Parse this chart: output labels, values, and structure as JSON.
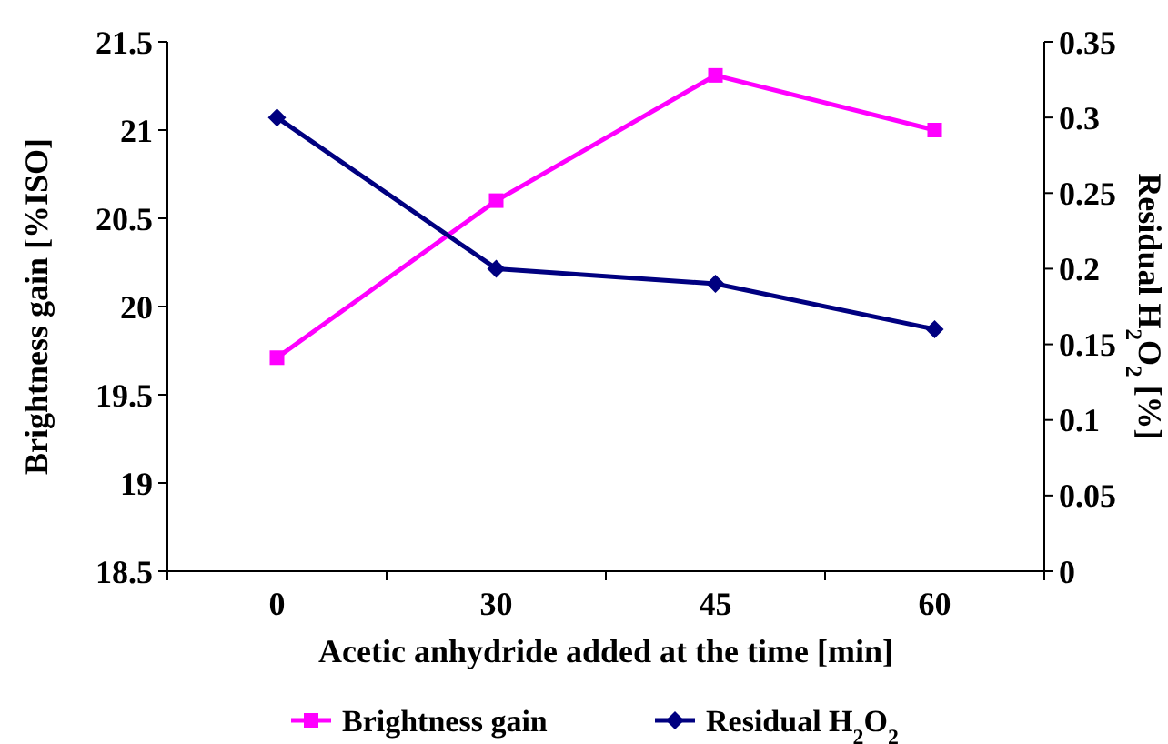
{
  "chart_data": {
    "type": "line",
    "xlabel": "Acetic anhydride added at the time [min]",
    "ylabel": "Brightness gain [%ISO]",
    "y2label": "Residual H$_{2}$O$_{2}$ [%]",
    "categories": [
      "0",
      "30",
      "45",
      "60"
    ],
    "series": [
      {
        "name": "Brightness gain",
        "color": "#ff00ff",
        "values": [
          19.71,
          20.6,
          21.31,
          21.0
        ],
        "marker": "square"
      },
      {
        "name": "Residual H$_{2}$O$_{2}$",
        "color": "#000080",
        "values": [
          0.3,
          0.2,
          0.19,
          0.16
        ],
        "axis": "y2",
        "marker": "diamond"
      }
    ],
    "ylim": [
      18.5,
      21.5
    ],
    "yticks": [
      18.5,
      19,
      19.5,
      20,
      20.5,
      21,
      21.5
    ],
    "y2lim": [
      0,
      0.35
    ],
    "y2ticks": [
      0,
      0.05,
      0.1,
      0.15,
      0.2,
      0.25,
      0.3,
      0.35
    ],
    "grid": false,
    "legend": "bottom",
    "line_style": "solid"
  }
}
